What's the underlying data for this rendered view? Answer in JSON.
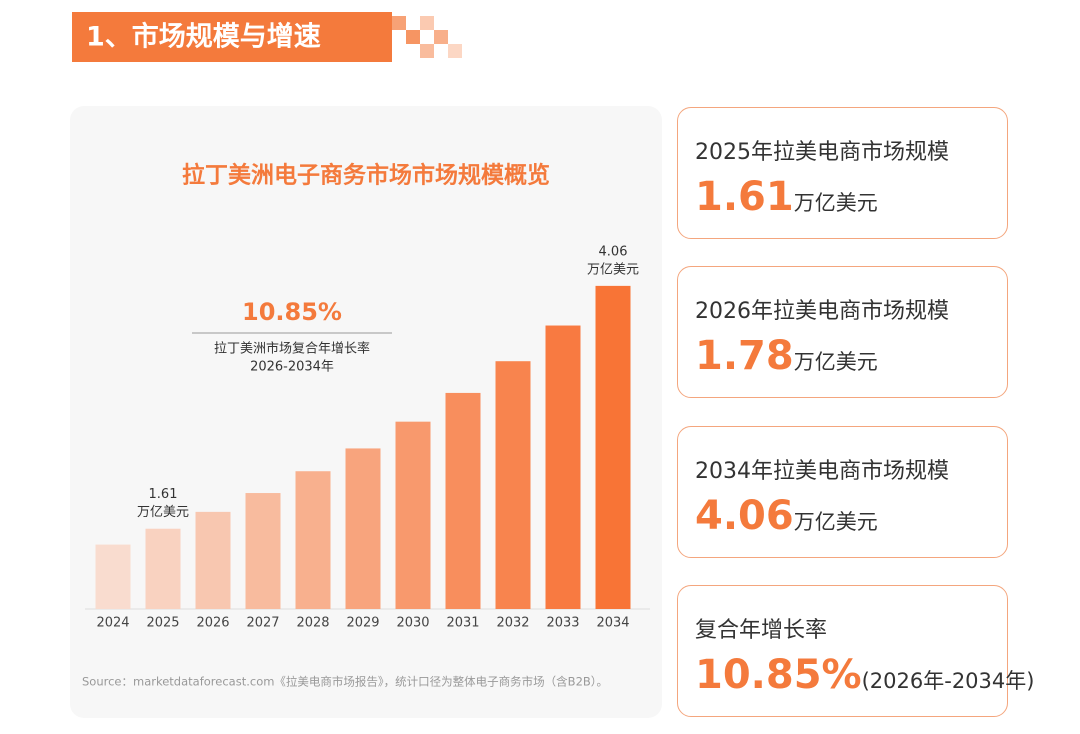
{
  "header": {
    "title": "1、市场规模与增速"
  },
  "chart_data": {
    "type": "bar",
    "title": "拉丁美洲电子商务市场市场规模概览",
    "categories": [
      "2024",
      "2025",
      "2026",
      "2027",
      "2028",
      "2029",
      "2030",
      "2031",
      "2032",
      "2033",
      "2034"
    ],
    "values": [
      1.45,
      1.61,
      1.78,
      1.97,
      2.19,
      2.42,
      2.69,
      2.98,
      3.3,
      3.66,
      4.06
    ],
    "value_labels": [
      null,
      "1.61",
      null,
      null,
      null,
      null,
      null,
      null,
      null,
      null,
      "4.06"
    ],
    "value_label_unit": "万亿美元",
    "colors": [
      "#f9dccf",
      "#f9d2c0",
      "#f8c7b0",
      "#f8bb9e",
      "#f8b08e",
      "#f8a47d",
      "#f8996d",
      "#f88e5d",
      "#f8844e",
      "#f87a41",
      "#f87436"
    ],
    "ylim": [
      0.8,
      4.2
    ],
    "annotation": {
      "value": "10.85%",
      "label": "拉丁美洲市场复合年增长率",
      "period": "2026-2034年"
    },
    "source": "Source：marketdataforecast.com《拉美电商市场报告》，统计口径为整体电子商务市场（含B2B）。"
  },
  "cards": [
    {
      "title": "2025年拉美电商市场规模",
      "value": "1.61",
      "unit": "万亿美元"
    },
    {
      "title": "2026年拉美电商市场规模",
      "value": "1.78",
      "unit": "万亿美元"
    },
    {
      "title": "2034年拉美电商市场规模",
      "value": "4.06",
      "unit": "万亿美元"
    },
    {
      "title": "复合年增长率",
      "value": "10.85%",
      "unit": "(2026年-2034年)"
    }
  ]
}
